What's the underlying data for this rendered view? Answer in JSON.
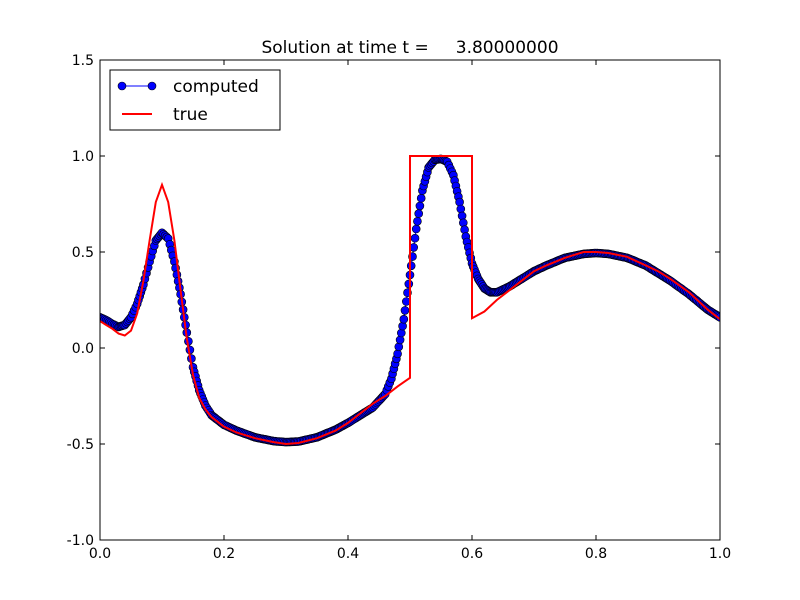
{
  "chart_data": {
    "type": "line",
    "title": "Solution at time t =     3.80000000",
    "xlabel": "",
    "ylabel": "",
    "xlim": [
      0.0,
      1.0
    ],
    "ylim": [
      -1.0,
      1.5
    ],
    "x_ticks": [
      "0.0",
      "0.2",
      "0.4",
      "0.6",
      "0.8",
      "1.0"
    ],
    "y_ticks": [
      "-1.0",
      "-0.5",
      "0.0",
      "0.5",
      "1.0",
      "1.5"
    ],
    "grid": false,
    "legend_position": "top-left",
    "series": [
      {
        "name": "computed",
        "style": "line-with-circle-markers",
        "color": "#0000ff",
        "marker_edge_color": "#000000",
        "points": [
          [
            0.0,
            0.16
          ],
          [
            0.01,
            0.145
          ],
          [
            0.02,
            0.125
          ],
          [
            0.03,
            0.11
          ],
          [
            0.04,
            0.12
          ],
          [
            0.05,
            0.16
          ],
          [
            0.06,
            0.23
          ],
          [
            0.07,
            0.33
          ],
          [
            0.08,
            0.45
          ],
          [
            0.09,
            0.56
          ],
          [
            0.1,
            0.6
          ],
          [
            0.11,
            0.57
          ],
          [
            0.12,
            0.45
          ],
          [
            0.13,
            0.28
          ],
          [
            0.14,
            0.08
          ],
          [
            0.15,
            -0.1
          ],
          [
            0.16,
            -0.22
          ],
          [
            0.17,
            -0.3
          ],
          [
            0.18,
            -0.35
          ],
          [
            0.2,
            -0.4
          ],
          [
            0.22,
            -0.43
          ],
          [
            0.25,
            -0.465
          ],
          [
            0.28,
            -0.485
          ],
          [
            0.3,
            -0.49
          ],
          [
            0.32,
            -0.487
          ],
          [
            0.35,
            -0.465
          ],
          [
            0.38,
            -0.425
          ],
          [
            0.4,
            -0.39
          ],
          [
            0.42,
            -0.35
          ],
          [
            0.44,
            -0.31
          ],
          [
            0.46,
            -0.24
          ],
          [
            0.47,
            -0.16
          ],
          [
            0.48,
            -0.03
          ],
          [
            0.49,
            0.15
          ],
          [
            0.5,
            0.38
          ],
          [
            0.51,
            0.62
          ],
          [
            0.52,
            0.82
          ],
          [
            0.53,
            0.94
          ],
          [
            0.54,
            0.98
          ],
          [
            0.55,
            0.985
          ],
          [
            0.56,
            0.97
          ],
          [
            0.57,
            0.9
          ],
          [
            0.58,
            0.76
          ],
          [
            0.59,
            0.58
          ],
          [
            0.6,
            0.44
          ],
          [
            0.61,
            0.36
          ],
          [
            0.62,
            0.31
          ],
          [
            0.63,
            0.29
          ],
          [
            0.64,
            0.29
          ],
          [
            0.66,
            0.32
          ],
          [
            0.68,
            0.36
          ],
          [
            0.7,
            0.4
          ],
          [
            0.72,
            0.43
          ],
          [
            0.75,
            0.47
          ],
          [
            0.78,
            0.49
          ],
          [
            0.8,
            0.495
          ],
          [
            0.82,
            0.49
          ],
          [
            0.85,
            0.47
          ],
          [
            0.88,
            0.43
          ],
          [
            0.9,
            0.39
          ],
          [
            0.92,
            0.35
          ],
          [
            0.95,
            0.28
          ],
          [
            0.98,
            0.2
          ],
          [
            1.0,
            0.16
          ]
        ]
      },
      {
        "name": "true",
        "style": "line",
        "color": "#ff0000",
        "points": [
          [
            0.0,
            0.14
          ],
          [
            0.01,
            0.12
          ],
          [
            0.02,
            0.1
          ],
          [
            0.03,
            0.075
          ],
          [
            0.04,
            0.065
          ],
          [
            0.05,
            0.09
          ],
          [
            0.06,
            0.18
          ],
          [
            0.07,
            0.35
          ],
          [
            0.08,
            0.56
          ],
          [
            0.09,
            0.76
          ],
          [
            0.1,
            0.85
          ],
          [
            0.11,
            0.76
          ],
          [
            0.12,
            0.56
          ],
          [
            0.13,
            0.3
          ],
          [
            0.14,
            0.05
          ],
          [
            0.15,
            -0.14
          ],
          [
            0.16,
            -0.26
          ],
          [
            0.17,
            -0.32
          ],
          [
            0.18,
            -0.36
          ],
          [
            0.2,
            -0.41
          ],
          [
            0.22,
            -0.44
          ],
          [
            0.25,
            -0.47
          ],
          [
            0.28,
            -0.49
          ],
          [
            0.3,
            -0.5
          ],
          [
            0.32,
            -0.495
          ],
          [
            0.35,
            -0.47
          ],
          [
            0.38,
            -0.43
          ],
          [
            0.4,
            -0.39
          ],
          [
            0.42,
            -0.34
          ],
          [
            0.44,
            -0.29
          ],
          [
            0.46,
            -0.25
          ],
          [
            0.48,
            -0.2
          ],
          [
            0.5,
            -0.155
          ],
          [
            0.5,
            1.0
          ],
          [
            0.6,
            1.0
          ],
          [
            0.6,
            0.155
          ],
          [
            0.62,
            0.19
          ],
          [
            0.64,
            0.25
          ],
          [
            0.66,
            0.3
          ],
          [
            0.68,
            0.35
          ],
          [
            0.7,
            0.4
          ],
          [
            0.72,
            0.43
          ],
          [
            0.75,
            0.47
          ],
          [
            0.78,
            0.5
          ],
          [
            0.8,
            0.5
          ],
          [
            0.82,
            0.495
          ],
          [
            0.85,
            0.475
          ],
          [
            0.88,
            0.43
          ],
          [
            0.9,
            0.4
          ],
          [
            0.92,
            0.36
          ],
          [
            0.95,
            0.29
          ],
          [
            0.98,
            0.2
          ],
          [
            1.0,
            0.15
          ]
        ]
      }
    ]
  }
}
